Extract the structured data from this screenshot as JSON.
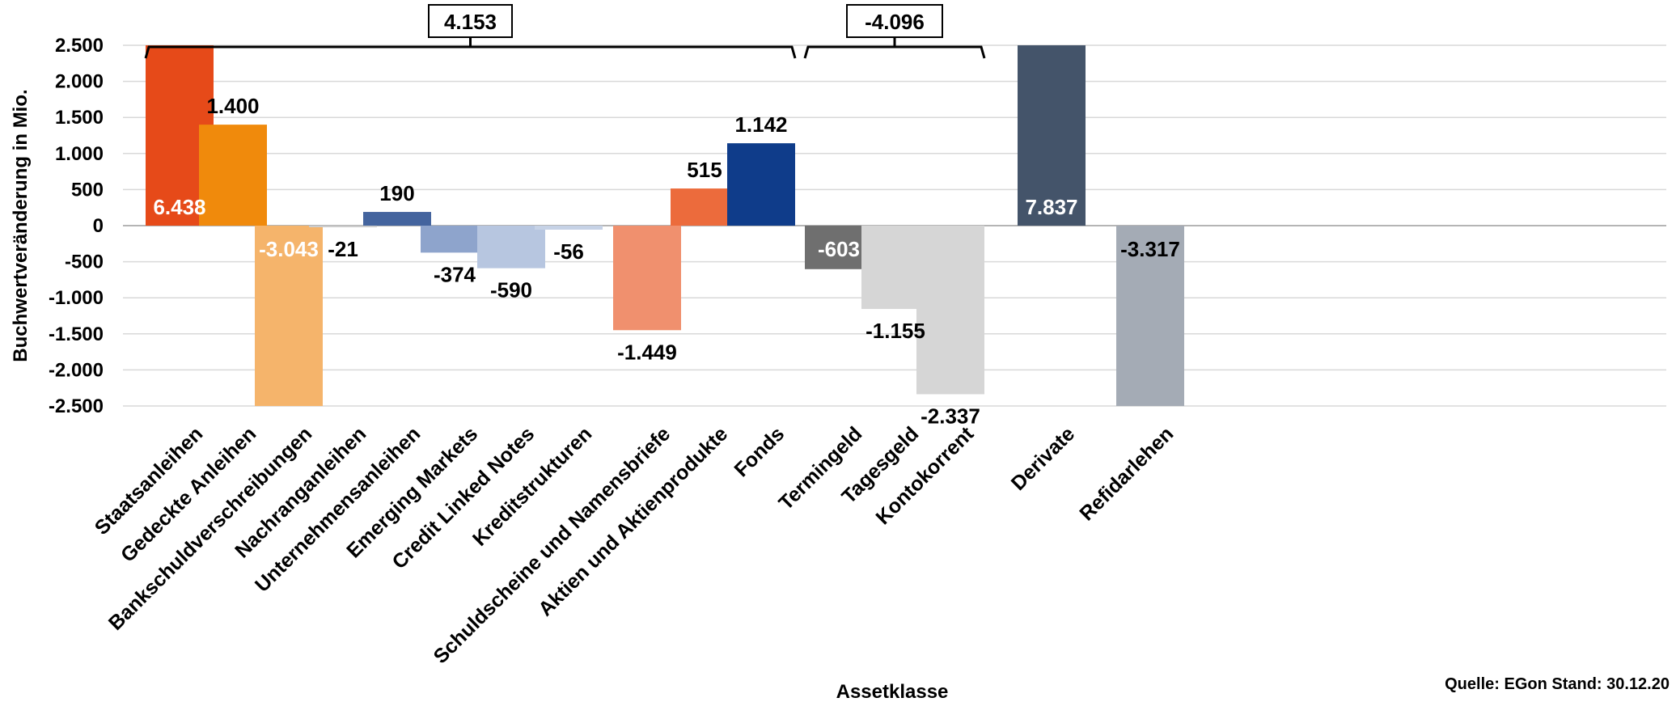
{
  "chart_data": {
    "type": "bar",
    "ylabel": "Buchwertveränderung in Mio.",
    "xlabel": "Assetklasse",
    "ylim": [
      -2500,
      2500
    ],
    "ytick_step": 500,
    "yticks": [
      "2.500",
      "2.000",
      "1.500",
      "1.000",
      "500",
      "0",
      "-500",
      "-1.000",
      "-1.500",
      "-2.000",
      "-2.500"
    ],
    "grid": true,
    "bars": [
      {
        "category": "Staatsanleihen",
        "value": 6438,
        "label": "6.438",
        "color": "#e64a19",
        "label_inside": true
      },
      {
        "category": "Gedeckte Anleihen",
        "value": 1400,
        "label": "1.400",
        "color": "#f08a0c"
      },
      {
        "category": "Bankschuldverschreibungen",
        "value": -3043,
        "label": "-3.043",
        "color": "#f5b46b",
        "label_inside": true
      },
      {
        "category": "Nachranganleihen",
        "value": -21,
        "label": "-21",
        "color": "#cccccc"
      },
      {
        "category": "Unternehmensanleihen",
        "value": 190,
        "label": "190",
        "color": "#44649e"
      },
      {
        "category": "Emerging Markets",
        "value": -374,
        "label": "-374",
        "color": "#8ea4cc"
      },
      {
        "category": "Credit Linked Notes",
        "value": -590,
        "label": "-590",
        "color": "#b7c6e0"
      },
      {
        "category": "Kreditstrukturen",
        "value": -56,
        "label": "-56",
        "color": "#c6d2e6"
      },
      {
        "category": "Schuldscheine und Namensbriefe",
        "value": -1449,
        "label": "-1.449",
        "color": "#f0906e"
      },
      {
        "category": "Aktien und Aktienprodukte",
        "value": 515,
        "label": "515",
        "color": "#ec6b3c"
      },
      {
        "category": "Fonds",
        "value": 1142,
        "label": "1.142",
        "color": "#0f3c8a"
      },
      {
        "category": "Termingeld",
        "value": -603,
        "label": "-603",
        "color": "#6f6f6f",
        "label_inside": true
      },
      {
        "category": "Tagesgeld",
        "value": -1155,
        "label": "-1.155",
        "color": "#d6d6d6"
      },
      {
        "category": "Kontokorrent",
        "value": -2337,
        "label": "-2.337",
        "color": "#d6d6d6"
      },
      {
        "category": "Derivate",
        "value": 7837,
        "label": "7.837",
        "color": "#44546a",
        "label_inside": true
      },
      {
        "category": "Refidarlehen",
        "value": -3317,
        "label": "-3.317",
        "color": "#a4abb5",
        "label_inside": true
      }
    ],
    "annotations": [
      {
        "label": "4.153",
        "from_category": "Staatsanleihen",
        "to_category": "Fonds"
      },
      {
        "label": "-4.096",
        "from_category": "Termingeld",
        "to_category": "Kontokorrent"
      }
    ]
  },
  "footer": {
    "source": "Quelle: EGon  Stand: 30.12.20"
  }
}
